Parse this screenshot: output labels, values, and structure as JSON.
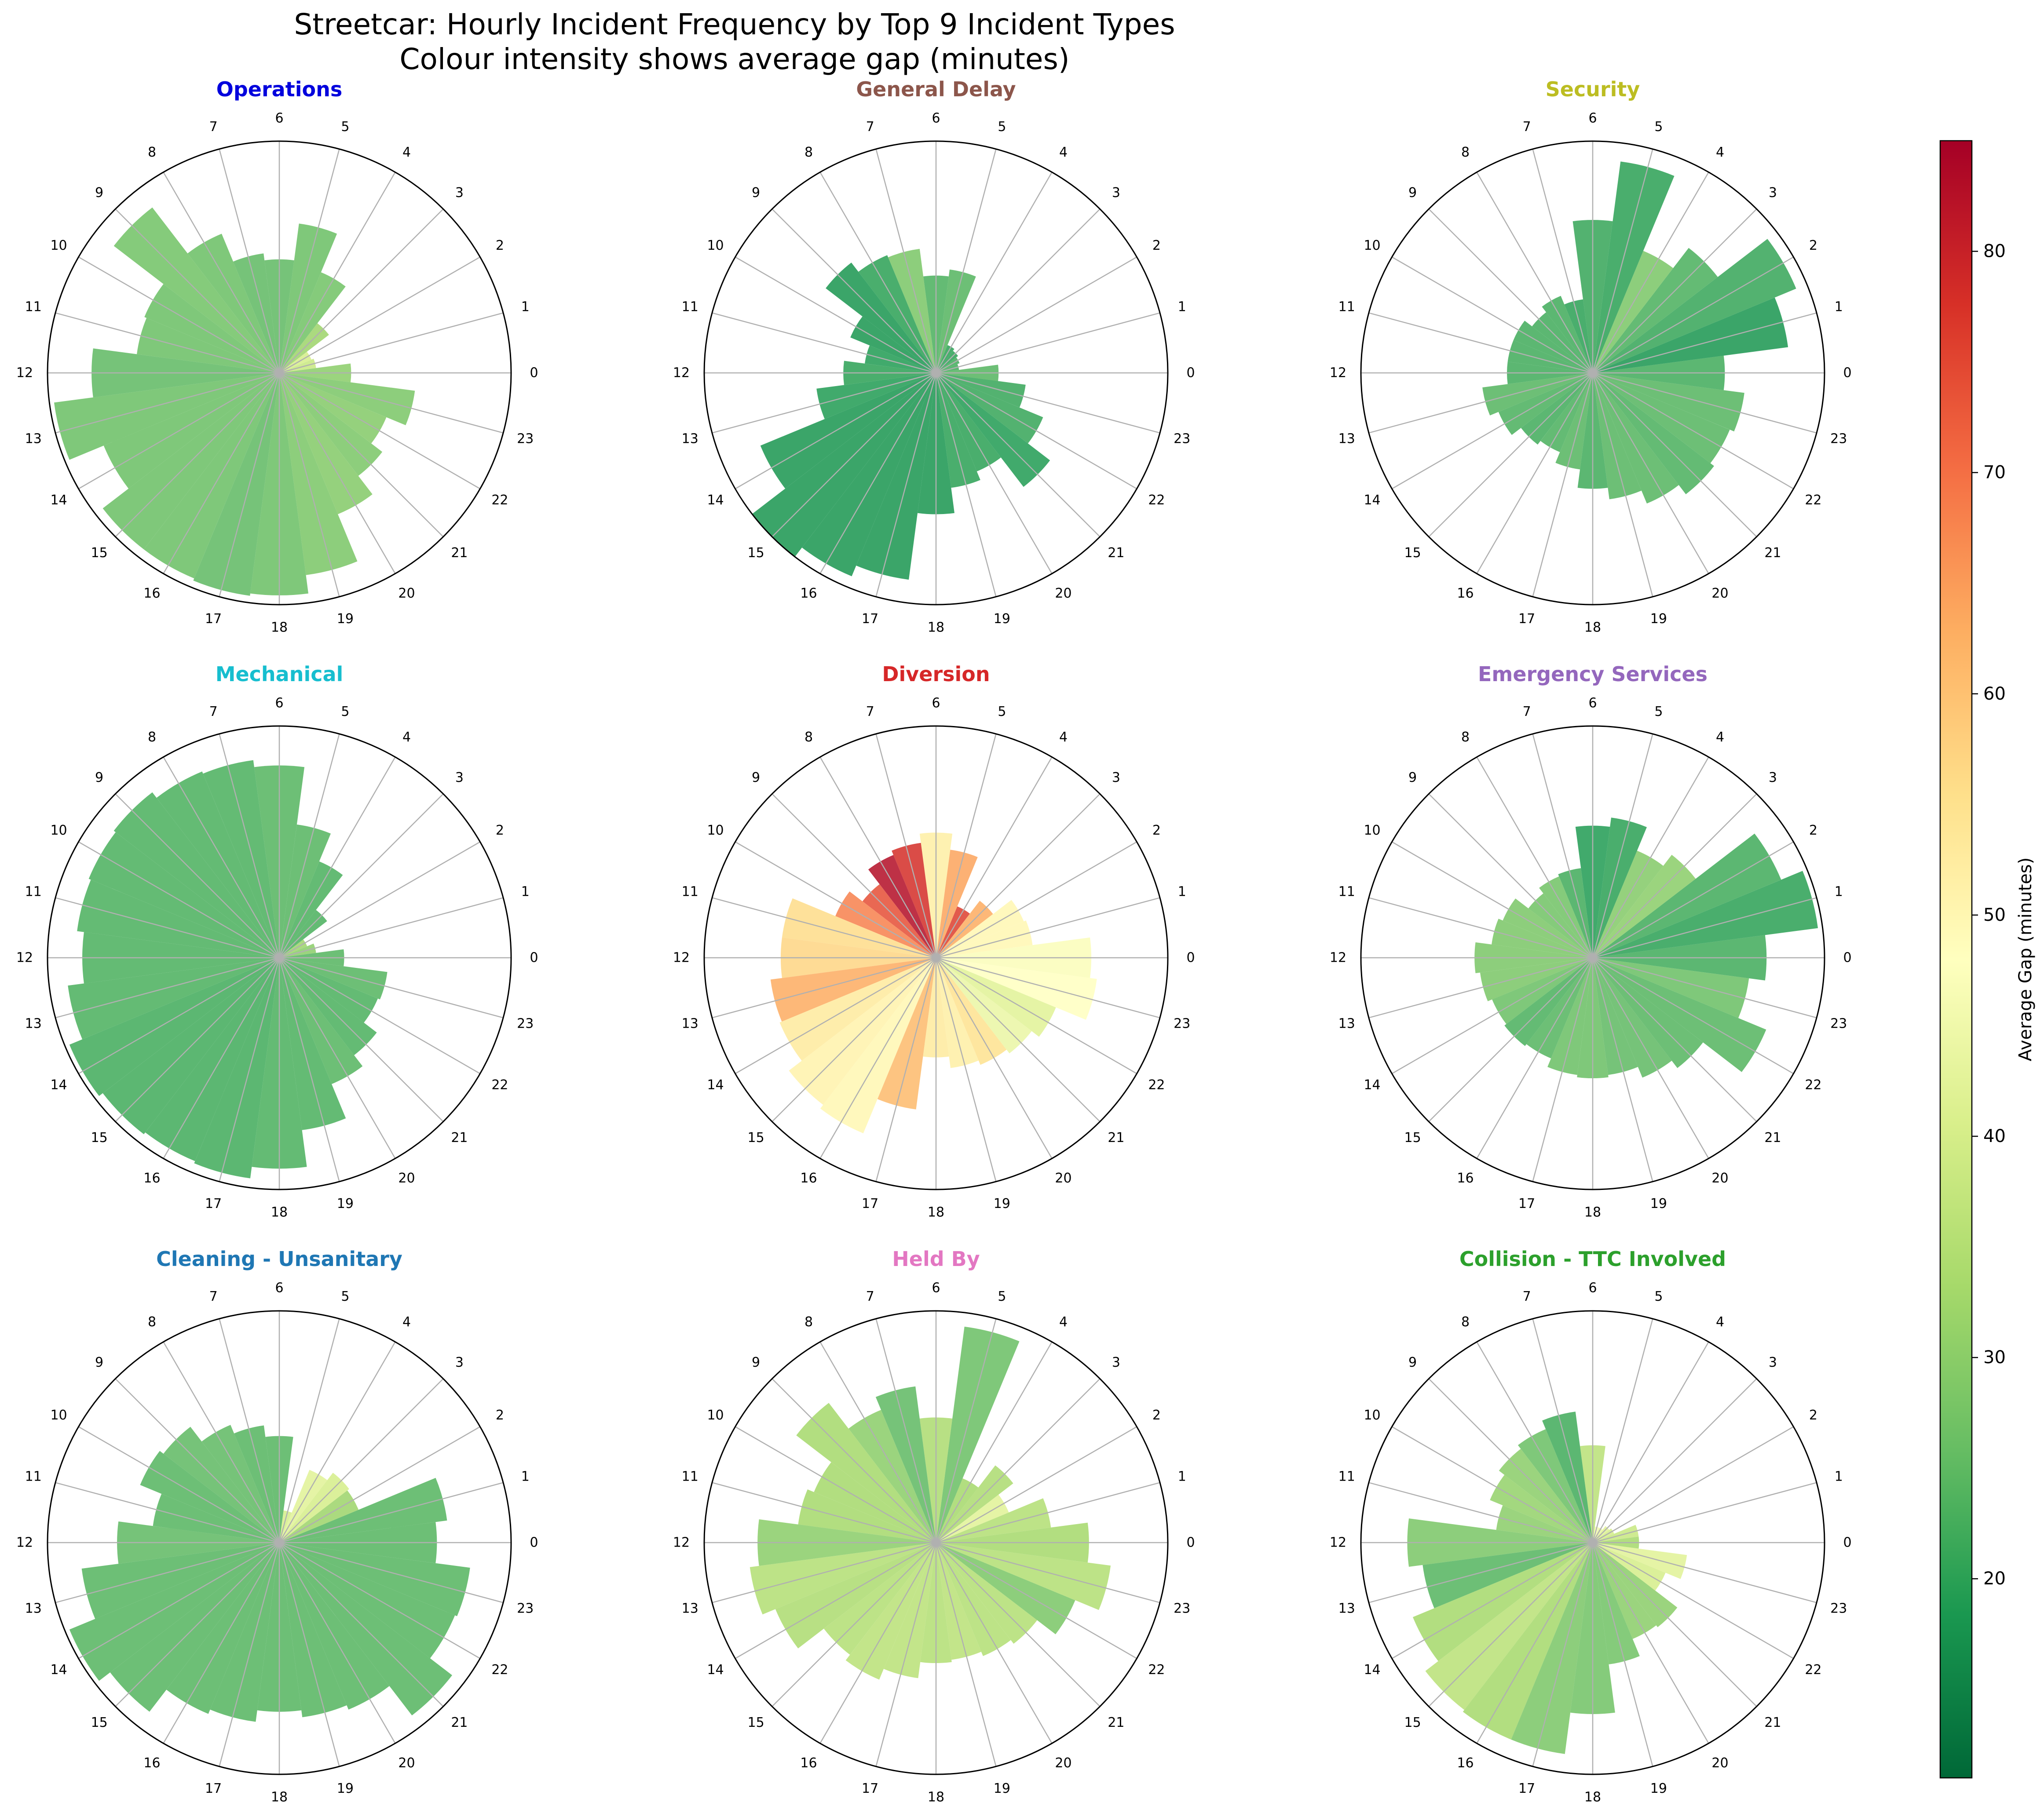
{
  "figure": {
    "title_line1": "Streetcar: Hourly Incident Frequency by Top 9 Incident Types",
    "title_line2": "Colour intensity shows average gap (minutes)"
  },
  "colorbar": {
    "label": "Average Gap (minutes)",
    "range": [
      11,
      85
    ],
    "ticks": [
      20,
      30,
      40,
      50,
      60,
      70,
      80
    ],
    "colormap": "RdYlGn_r"
  },
  "chart_data": [
    {
      "type": "polar-bar",
      "title": "Operations",
      "title_color": "#0000dd",
      "hours": [
        0,
        1,
        2,
        3,
        4,
        5,
        6,
        7,
        8,
        9,
        10,
        11,
        12,
        13,
        14,
        15,
        16,
        17,
        18,
        19,
        20,
        21,
        22,
        23
      ],
      "counts": [
        0.31,
        0.16,
        0.15,
        0.27,
        0.47,
        0.65,
        0.49,
        0.52,
        0.65,
        0.9,
        0.63,
        0.62,
        0.81,
        0.98,
        0.82,
        0.96,
        0.96,
        0.97,
        0.96,
        0.88,
        0.66,
        0.56,
        0.5,
        0.59
      ],
      "avg_gap": [
        30,
        38,
        40,
        32,
        27,
        26,
        25,
        25,
        26,
        27,
        26,
        26,
        25,
        26,
        26,
        26,
        26,
        25,
        26,
        28,
        29,
        28,
        29,
        28
      ]
    },
    {
      "type": "polar-bar",
      "title": "General Delay",
      "title_color": "#8c564b",
      "hours": [
        0,
        1,
        2,
        3,
        4,
        5,
        6,
        7,
        8,
        9,
        10,
        11,
        12,
        13,
        14,
        15,
        16,
        17,
        18,
        19,
        20,
        21,
        22,
        23
      ],
      "counts": [
        0.27,
        0.1,
        0.11,
        0.12,
        0.13,
        0.45,
        0.42,
        0.54,
        0.55,
        0.6,
        0.4,
        0.31,
        0.4,
        0.52,
        0.82,
        1.0,
        0.95,
        0.9,
        0.61,
        0.5,
        0.46,
        0.62,
        0.5,
        0.39
      ],
      "avg_gap": [
        24,
        22,
        22,
        20,
        20,
        24,
        23,
        28,
        20,
        18,
        18,
        19,
        20,
        19,
        18,
        18,
        18,
        18,
        18,
        20,
        20,
        19,
        21,
        21
      ]
    },
    {
      "type": "polar-bar",
      "title": "Security",
      "title_color": "#bcbd22",
      "hours": [
        0,
        1,
        2,
        3,
        4,
        5,
        6,
        7,
        8,
        9,
        10,
        11,
        12,
        13,
        14,
        15,
        16,
        17,
        18,
        19,
        20,
        21,
        22,
        23
      ],
      "counts": [
        0.57,
        0.85,
        0.95,
        0.68,
        0.57,
        0.92,
        0.66,
        0.32,
        0.36,
        0.33,
        0.37,
        0.37,
        0.37,
        0.48,
        0.44,
        0.39,
        0.37,
        0.42,
        0.5,
        0.55,
        0.61,
        0.66,
        0.64,
        0.66
      ],
      "avg_gap": [
        22,
        18,
        21,
        23,
        28,
        20,
        21,
        20,
        22,
        22,
        22,
        22,
        22,
        24,
        23,
        22,
        23,
        24,
        22,
        24,
        24,
        23,
        24,
        24
      ]
    },
    {
      "type": "polar-bar",
      "title": "Mechanical",
      "title_color": "#17becf",
      "hours": [
        0,
        1,
        2,
        3,
        4,
        5,
        6,
        7,
        8,
        9,
        10,
        11,
        12,
        13,
        14,
        15,
        16,
        17,
        18,
        19,
        20,
        21,
        22,
        23
      ],
      "counts": [
        0.28,
        0.16,
        0.13,
        0.26,
        0.45,
        0.58,
        0.83,
        0.86,
        0.87,
        0.9,
        0.89,
        0.88,
        0.85,
        0.92,
        0.98,
        0.96,
        0.95,
        0.96,
        0.91,
        0.75,
        0.59,
        0.53,
        0.46,
        0.47
      ],
      "avg_gap": [
        24,
        30,
        32,
        23,
        23,
        24,
        24,
        23,
        23,
        23,
        23,
        23,
        23,
        23,
        22,
        22,
        22,
        22,
        23,
        23,
        24,
        23,
        23,
        24
      ]
    },
    {
      "type": "polar-bar",
      "title": "Diversion",
      "title_color": "#d62728",
      "hours": [
        0,
        1,
        2,
        3,
        4,
        5,
        6,
        7,
        8,
        9,
        10,
        11,
        12,
        13,
        14,
        15,
        16,
        17,
        18,
        19,
        20,
        21,
        22,
        23
      ],
      "counts": [
        0.67,
        0.42,
        0.41,
        0.31,
        0.24,
        0.47,
        0.54,
        0.5,
        0.48,
        0.4,
        0.47,
        0.67,
        0.67,
        0.72,
        0.73,
        0.8,
        0.82,
        0.66,
        0.43,
        0.48,
        0.5,
        0.52,
        0.56,
        0.7
      ],
      "avg_gap": [
        47,
        50,
        50,
        63,
        76,
        64,
        52,
        78,
        83,
        74,
        68,
        56,
        57,
        63,
        53,
        51,
        50,
        61,
        53,
        52,
        55,
        44,
        42,
        48
      ]
    },
    {
      "type": "polar-bar",
      "title": "Emergency Services",
      "title_color": "#9467bd",
      "hours": [
        0,
        1,
        2,
        3,
        4,
        5,
        6,
        7,
        8,
        9,
        10,
        11,
        12,
        13,
        14,
        15,
        16,
        17,
        18,
        19,
        20,
        21,
        22,
        23
      ],
      "counts": [
        0.75,
        0.98,
        0.88,
        0.56,
        0.5,
        0.61,
        0.57,
        0.39,
        0.38,
        0.35,
        0.42,
        0.44,
        0.51,
        0.49,
        0.47,
        0.48,
        0.47,
        0.51,
        0.52,
        0.51,
        0.56,
        0.6,
        0.81,
        0.68
      ],
      "avg_gap": [
        22,
        20,
        22,
        30,
        29,
        20,
        19,
        22,
        27,
        27,
        28,
        28,
        28,
        28,
        26,
        23,
        24,
        26,
        26,
        25,
        25,
        24,
        24,
        26
      ]
    },
    {
      "type": "polar-bar",
      "title": "Cleaning - Unsanitary",
      "title_color": "#1f77b4",
      "hours": [
        0,
        1,
        2,
        3,
        4,
        5,
        6,
        7,
        8,
        9,
        10,
        11,
        12,
        13,
        14,
        15,
        16,
        17,
        18,
        19,
        20,
        21,
        22,
        23
      ],
      "counts": [
        0.68,
        0.73,
        0.37,
        0.38,
        0.34,
        0.14,
        0.46,
        0.51,
        0.55,
        0.63,
        0.65,
        0.55,
        0.7,
        0.86,
        0.98,
        0.92,
        0.8,
        0.78,
        0.73,
        0.76,
        0.78,
        0.94,
        0.82,
        0.83
      ],
      "avg_gap": [
        24,
        24,
        32,
        40,
        42,
        40,
        24,
        24,
        25,
        25,
        24,
        24,
        25,
        24,
        24,
        24,
        24,
        24,
        24,
        24,
        24,
        24,
        24,
        24
      ]
    },
    {
      "type": "polar-bar",
      "title": "Held By",
      "title_color": "#e377c2",
      "hours": [
        0,
        1,
        2,
        3,
        4,
        5,
        6,
        7,
        8,
        9,
        10,
        11,
        12,
        13,
        14,
        15,
        16,
        17,
        18,
        19,
        20,
        21,
        22,
        23
      ],
      "counts": [
        0.66,
        0.5,
        0.34,
        0.42,
        0.3,
        0.94,
        0.54,
        0.68,
        0.62,
        0.76,
        0.57,
        0.6,
        0.77,
        0.81,
        0.75,
        0.61,
        0.64,
        0.59,
        0.52,
        0.51,
        0.53,
        0.55,
        0.65,
        0.76
      ],
      "avg_gap": [
        33,
        35,
        42,
        34,
        33,
        26,
        34,
        25,
        30,
        33,
        33,
        33,
        30,
        35,
        34,
        35,
        36,
        36,
        35,
        36,
        35,
        35,
        28,
        35
      ]
    },
    {
      "type": "polar-bar",
      "title": "Collision - TTC Involved",
      "title_color": "#2ca02c",
      "hours": [
        0,
        1,
        2,
        3,
        4,
        5,
        6,
        7,
        8,
        9,
        10,
        11,
        12,
        13,
        14,
        15,
        16,
        17,
        18,
        19,
        20,
        21,
        22,
        23
      ],
      "counts": [
        0.2,
        0.2,
        0.1,
        0.09,
        0.07,
        0.07,
        0.42,
        0.57,
        0.53,
        0.51,
        0.48,
        0.42,
        0.8,
        0.74,
        0.84,
        0.91,
        0.92,
        0.92,
        0.74,
        0.53,
        0.45,
        0.46,
        0.34,
        0.41
      ],
      "avg_gap": [
        33,
        38,
        40,
        42,
        44,
        46,
        36,
        22,
        26,
        30,
        31,
        30,
        28,
        24,
        33,
        36,
        33,
        28,
        27,
        27,
        30,
        30,
        40,
        42
      ]
    }
  ]
}
